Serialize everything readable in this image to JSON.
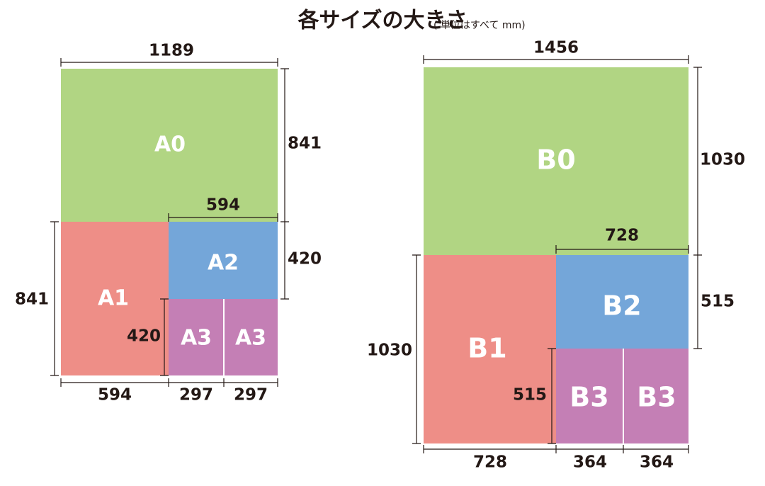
{
  "title": "各サイズの大きさ",
  "unit_note": "( 単位はすべて mm)",
  "a_series": {
    "sheets": [
      "A0",
      "A1",
      "A2",
      "A3",
      "A3"
    ],
    "dimensions": {
      "top": 1189,
      "right_upper": 841,
      "inner_width": 594,
      "right_lower": 420,
      "left": 841,
      "inner_height": 420,
      "bottom_1": 594,
      "bottom_2": 297,
      "bottom_3": 297
    }
  },
  "b_series": {
    "sheets": [
      "B0",
      "B1",
      "B2",
      "B3",
      "B3"
    ],
    "dimensions": {
      "top": 1456,
      "right_upper": 1030,
      "inner_width": 728,
      "right_lower": 515,
      "left": 1030,
      "inner_height": 515,
      "bottom_1": 728,
      "bottom_2": 364,
      "bottom_3": 364
    }
  }
}
